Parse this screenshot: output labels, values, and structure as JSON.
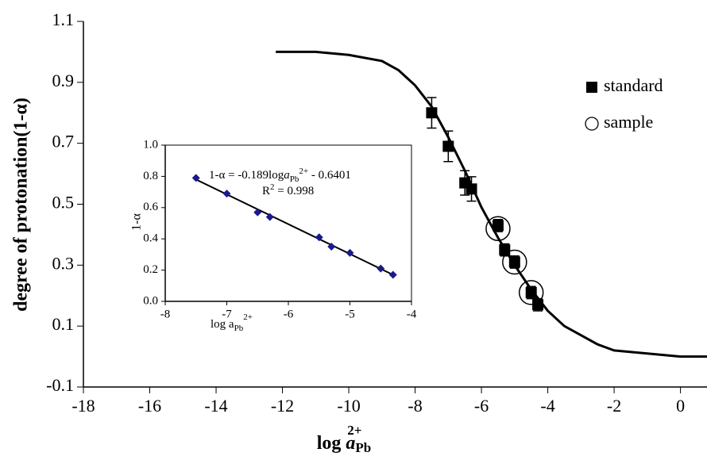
{
  "chart_data": {
    "type": "scatter",
    "y_label": "degree of protonation(1-α)",
    "x_label": {
      "text": "log ",
      "a": "a",
      "sub": "Pb",
      "sup": "2+"
    },
    "xlim": [
      -18,
      0.8
    ],
    "xticks": [
      -18,
      -16,
      -14,
      -12,
      -10,
      -8,
      -6,
      -4,
      -2,
      0
    ],
    "ylim": [
      -0.1,
      1.1
    ],
    "yticks": [
      -0.1,
      0.1,
      0.3,
      0.5,
      0.7,
      0.9,
      1.1
    ],
    "curve": {
      "color": "#000000",
      "x": [
        -12.2,
        -11,
        -10,
        -9,
        -8.5,
        -8,
        -7.5,
        -7,
        -6.5,
        -6,
        -5.5,
        -5,
        -4.5,
        -4,
        -3.5,
        -3,
        -2.5,
        -2,
        -1,
        0,
        0.8
      ],
      "y": [
        1.0,
        1.0,
        0.99,
        0.97,
        0.94,
        0.89,
        0.82,
        0.72,
        0.61,
        0.49,
        0.39,
        0.3,
        0.22,
        0.15,
        0.1,
        0.07,
        0.04,
        0.02,
        0.01,
        0.0,
        0.0
      ]
    },
    "series": [
      {
        "name": "standard",
        "color": "#000000",
        "marker": "square",
        "x": [
          -7.5,
          -7.0,
          -6.5,
          -6.3,
          -5.5,
          -5.3,
          -5.0,
          -4.5,
          -4.3
        ],
        "values": [
          0.8,
          0.69,
          0.57,
          0.55,
          0.43,
          0.35,
          0.31,
          0.21,
          0.17
        ],
        "errors": [
          0.05,
          0.05,
          0.04,
          0.04,
          0.02,
          0.02,
          0.02,
          0.02,
          0.02
        ]
      },
      {
        "name": "sample",
        "color": "#000000",
        "marker": "circle",
        "x": [
          -5.5,
          -5.0,
          -4.5
        ],
        "values": [
          0.42,
          0.31,
          0.21
        ]
      }
    ],
    "inset": {
      "type": "scatter",
      "y_label": "1-α",
      "x_label": {
        "text": "log a",
        "sub": "Pb",
        "sup": "2+"
      },
      "xlim": [
        -8,
        -4
      ],
      "xticks": [
        -8,
        -7,
        -6,
        -5,
        -4
      ],
      "ylim": [
        0,
        1
      ],
      "yticks": [
        {
          "value": 0,
          "label": "0.0"
        },
        0.2,
        0.4,
        0.6,
        0.8,
        {
          "value": 1,
          "label": "1.0"
        }
      ],
      "points": {
        "color": "#1a1a8c",
        "x": [
          -7.5,
          -7.0,
          -6.5,
          -6.3,
          -5.5,
          -5.3,
          -5.0,
          -4.5,
          -4.3
        ],
        "values": [
          0.79,
          0.69,
          0.57,
          0.54,
          0.41,
          0.35,
          0.31,
          0.21,
          0.17
        ]
      },
      "fit": {
        "color": "#000000",
        "x": [
          -7.5,
          -4.3
        ],
        "y": [
          0.78,
          0.17
        ]
      },
      "equation": {
        "prefix": "1-α = -0.189log",
        "a": "a",
        "sub": "Pb",
        "sup": "2+",
        "suffix": " - 0.6401"
      },
      "r2": {
        "r": "R",
        "sup": "2",
        "rest": " = 0.998"
      }
    }
  }
}
